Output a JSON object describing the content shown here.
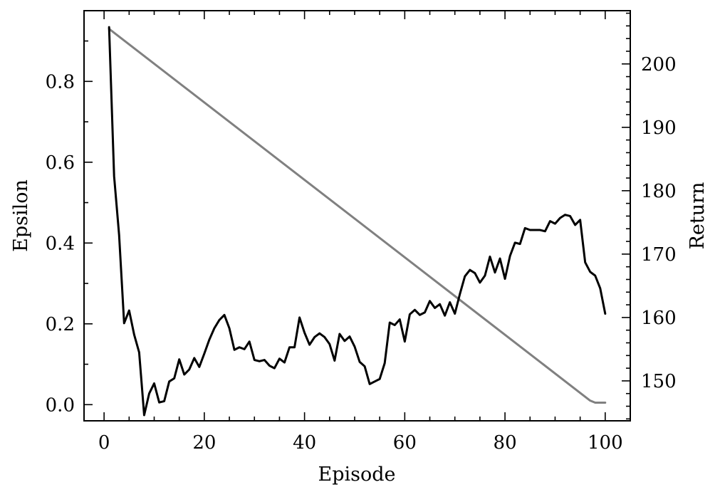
{
  "chart_data": {
    "type": "line",
    "title": "",
    "xlabel": "Episode",
    "ylabel_left": "Epsilon",
    "ylabel_right": "Return",
    "xlim": [
      -4,
      105
    ],
    "ylim_left": [
      -0.04,
      0.975
    ],
    "ylim_right": [
      143.7,
      208.4
    ],
    "x_ticks": [
      0,
      20,
      40,
      60,
      80,
      100
    ],
    "y_left_ticks": [
      0.0,
      0.2,
      0.4,
      0.6,
      0.8
    ],
    "y_right_ticks": [
      150,
      160,
      170,
      180,
      190,
      200
    ],
    "x_tick_labels": [
      "0",
      "20",
      "40",
      "60",
      "80",
      "100"
    ],
    "y_left_tick_labels": [
      "0.0",
      "0.2",
      "0.4",
      "0.6",
      "0.8"
    ],
    "y_right_tick_labels": [
      "150",
      "160",
      "170",
      "180",
      "190",
      "200"
    ],
    "grid": false,
    "legend": "none",
    "series": [
      {
        "axis": "left",
        "color": "#808080",
        "points": [
          [
            1,
            0.93
          ],
          [
            97,
            0.01
          ],
          [
            98,
            0.005
          ],
          [
            100,
            0.005
          ]
        ]
      },
      {
        "axis": "right",
        "color": "#000000",
        "x": [
          1,
          2,
          3,
          4,
          5,
          6,
          7,
          8,
          9,
          10,
          11,
          12,
          13,
          14,
          15,
          16,
          17,
          18,
          19,
          20,
          21,
          22,
          23,
          24,
          25,
          26,
          27,
          28,
          29,
          30,
          31,
          32,
          33,
          34,
          35,
          36,
          37,
          38,
          39,
          40,
          41,
          42,
          43,
          44,
          45,
          46,
          47,
          48,
          49,
          50,
          51,
          52,
          53,
          54,
          55,
          56,
          57,
          58,
          59,
          60,
          61,
          62,
          63,
          64,
          65,
          66,
          67,
          68,
          69,
          70,
          71,
          72,
          73,
          74,
          75,
          76,
          77,
          78,
          79,
          80,
          81,
          82,
          83,
          84,
          85,
          86,
          87,
          88,
          89,
          90,
          91,
          92,
          93,
          94,
          95,
          96,
          97,
          98,
          99,
          100
        ],
        "values": [
          205.8,
          182.3,
          173.0,
          159.1,
          161.1,
          157.3,
          154.5,
          144.6,
          148.0,
          149.6,
          146.6,
          146.8,
          149.9,
          150.4,
          153.4,
          151.0,
          151.8,
          153.6,
          152.2,
          154.3,
          156.5,
          158.3,
          159.6,
          160.4,
          158.3,
          154.9,
          155.3,
          155.0,
          156.2,
          153.3,
          153.1,
          153.3,
          152.4,
          152.0,
          153.5,
          152.9,
          155.3,
          155.3,
          160.0,
          157.6,
          155.7,
          156.9,
          157.5,
          156.9,
          155.8,
          153.2,
          157.4,
          156.3,
          157.0,
          155.4,
          153.0,
          152.3,
          149.5,
          149.9,
          150.3,
          152.8,
          159.2,
          158.8,
          159.7,
          156.2,
          160.5,
          161.2,
          160.4,
          160.8,
          162.6,
          161.5,
          162.1,
          160.3,
          162.4,
          160.6,
          163.7,
          166.5,
          167.5,
          167.0,
          165.5,
          166.6,
          169.6,
          167.1,
          169.3,
          166.1,
          169.7,
          171.8,
          171.6,
          174.1,
          173.8,
          173.8,
          173.8,
          173.6,
          175.2,
          174.8,
          175.7,
          176.2,
          176.0,
          174.6,
          175.4,
          168.7,
          167.2,
          166.6,
          164.6,
          160.6
        ]
      }
    ]
  }
}
